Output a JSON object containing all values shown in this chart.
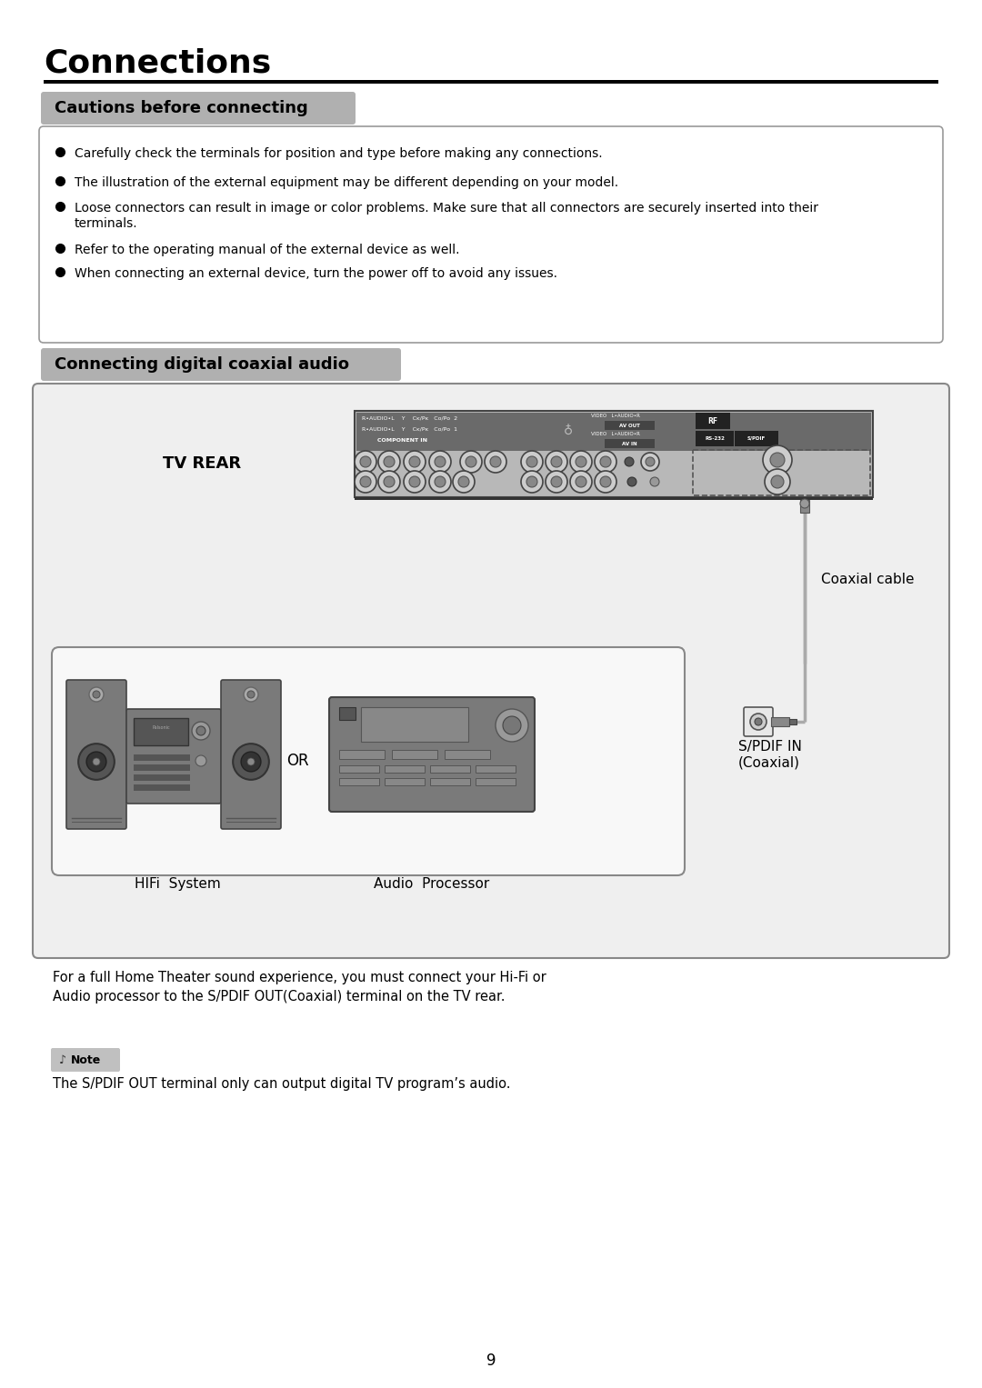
{
  "title": "Connections",
  "section1_title": "Cautions before connecting",
  "section2_title": "Connecting digital coaxial audio",
  "bullet_points": [
    "Carefully check the terminals for position and type before making any connections.",
    "The illustration of the external equipment may be different depending on your model.",
    "Loose connectors can result in image or color problems. Make sure that all connectors are securely inserted into their\nterminals.",
    "Refer to the operating manual of the external device as well.",
    "When connecting an external device, turn the power off to avoid any issues."
  ],
  "tv_rear_label": "TV REAR",
  "coaxial_cable_label": "Coaxial cable",
  "spdif_label": "S/PDIF IN\n(Coaxial)",
  "hifi_label": "HIFi  System",
  "audio_label": "Audio  Processor",
  "or_label": "OR",
  "desc_text": "For a full Home Theater sound experience, you must connect your Hi-Fi or\nAudio processor to the S/PDIF OUT(Coaxial) terminal on the TV rear.",
  "note_text": "The S/PDIF OUT terminal only can output digital TV program’s audio.",
  "page_number": "9",
  "bg_color": "#ffffff",
  "section_bg": "#b0b0b0",
  "diag_bg": "#efefef",
  "border_color": "#555555"
}
